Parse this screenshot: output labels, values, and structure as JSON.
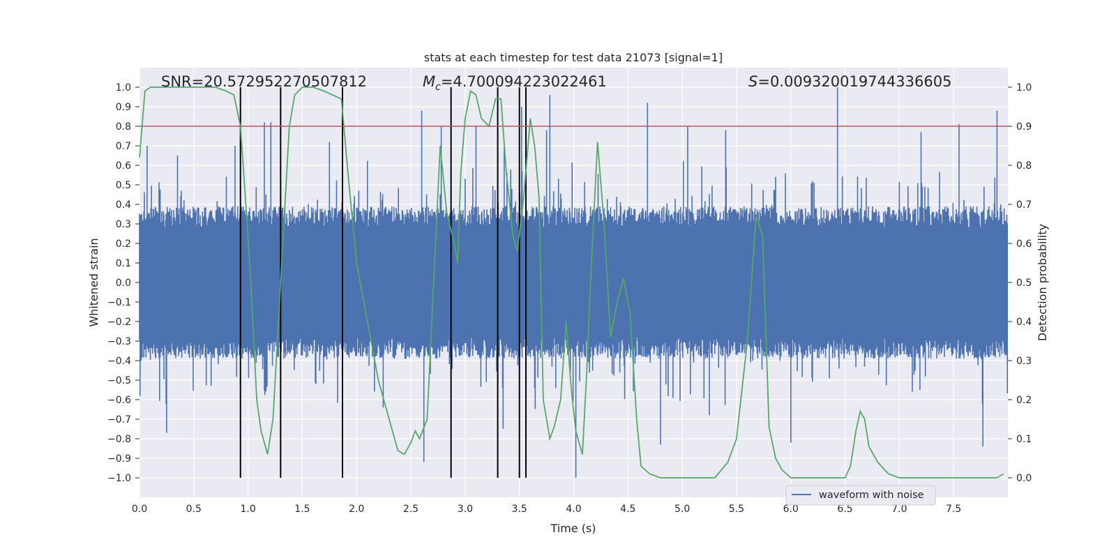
{
  "chart_data": {
    "type": "line",
    "title": "stats at each timestep for test data 21073 [signal=1]",
    "xlabel": "Time (s)",
    "ylabel": "Whitened strain",
    "y2label": "Detection probability",
    "xlim": [
      0.0,
      8.0
    ],
    "ylim": [
      -1.1,
      1.1
    ],
    "y2lim": [
      -0.05,
      1.05
    ],
    "x_ticks": [
      "0.0",
      "0.5",
      "1.0",
      "1.5",
      "2.0",
      "2.5",
      "3.0",
      "3.5",
      "4.0",
      "4.5",
      "5.0",
      "5.5",
      "6.0",
      "6.5",
      "7.0",
      "7.5"
    ],
    "y_ticks": [
      "1.0",
      "0.9",
      "0.8",
      "0.7",
      "0.6",
      "0.5",
      "0.4",
      "0.3",
      "0.2",
      "0.1",
      "0.0",
      "−0.1",
      "−0.2",
      "−0.3",
      "−0.4",
      "−0.5",
      "−0.6",
      "−0.7",
      "−0.8",
      "−0.9",
      "−1.0"
    ],
    "y2_ticks": [
      "1.0",
      "0.9",
      "0.8",
      "0.7",
      "0.6",
      "0.5",
      "0.4",
      "0.3",
      "0.2",
      "0.1",
      "0.0"
    ],
    "grid": true,
    "legend_position": "lower-right",
    "annotations": {
      "snr": "SNR=20.572952270507812",
      "mc": "=4.700094223022461",
      "s": "=0.009320019744336605"
    },
    "series": [
      {
        "name": "waveform with noise",
        "color": "#4c72b0",
        "axis": "left",
        "description": "dense noisy whitened strain, roughly within ±0.4 with spikes up to ~1.0"
      },
      {
        "axis": "right",
        "color": "#55a868",
        "x": [
          0.0,
          0.05,
          0.1,
          0.2,
          0.3,
          0.4,
          0.5,
          0.6,
          0.7,
          0.8,
          0.87,
          0.93,
          0.98,
          1.03,
          1.08,
          1.12,
          1.18,
          1.23,
          1.28,
          1.33,
          1.38,
          1.43,
          1.5,
          1.6,
          1.7,
          1.78,
          1.86,
          1.93,
          2.0,
          2.1,
          2.2,
          2.3,
          2.38,
          2.44,
          2.5,
          2.54,
          2.58,
          2.65,
          2.71,
          2.77,
          2.83,
          2.9,
          2.93,
          2.96,
          3.0,
          3.05,
          3.1,
          3.15,
          3.22,
          3.28,
          3.33,
          3.38,
          3.44,
          3.48,
          3.54,
          3.6,
          3.64,
          3.68,
          3.72,
          3.78,
          3.82,
          3.88,
          3.93,
          3.98,
          4.02,
          4.08,
          4.12,
          4.16,
          4.22,
          4.28,
          4.34,
          4.4,
          4.46,
          4.52,
          4.58,
          4.62,
          4.7,
          4.8,
          4.9,
          5.0,
          5.1,
          5.2,
          5.3,
          5.36,
          5.42,
          5.5,
          5.6,
          5.68,
          5.74,
          5.8,
          5.86,
          5.92,
          6.0,
          6.1,
          6.2,
          6.3,
          6.4,
          6.5,
          6.55,
          6.6,
          6.64,
          6.68,
          6.72,
          6.8,
          6.9,
          7.0,
          7.2,
          7.4,
          7.6,
          7.7,
          7.8,
          7.9,
          7.96
        ],
        "y": [
          0.82,
          0.99,
          1.0,
          1.0,
          1.0,
          1.0,
          1.0,
          1.0,
          1.0,
          0.99,
          0.98,
          0.9,
          0.7,
          0.48,
          0.2,
          0.12,
          0.06,
          0.15,
          0.4,
          0.65,
          0.9,
          0.98,
          1.0,
          1.0,
          0.99,
          0.98,
          0.97,
          0.75,
          0.55,
          0.4,
          0.25,
          0.15,
          0.07,
          0.06,
          0.09,
          0.12,
          0.1,
          0.15,
          0.5,
          0.85,
          0.68,
          0.6,
          0.55,
          0.78,
          0.92,
          0.99,
          0.98,
          0.92,
          0.9,
          0.97,
          0.97,
          0.78,
          0.62,
          0.58,
          0.72,
          0.92,
          0.85,
          0.72,
          0.2,
          0.1,
          0.13,
          0.2,
          0.4,
          0.22,
          0.12,
          0.06,
          0.27,
          0.53,
          0.86,
          0.65,
          0.36,
          0.45,
          0.51,
          0.42,
          0.15,
          0.03,
          0.01,
          0.0,
          0.0,
          0.0,
          0.0,
          0.0,
          0.0,
          0.02,
          0.04,
          0.1,
          0.35,
          0.67,
          0.62,
          0.13,
          0.05,
          0.02,
          0.0,
          0.0,
          0.0,
          0.0,
          0.0,
          0.0,
          0.03,
          0.12,
          0.17,
          0.15,
          0.08,
          0.04,
          0.01,
          0.0,
          0.0,
          0.0,
          0.0,
          0.0,
          0.0,
          0.0,
          0.01
        ]
      },
      {
        "name": "threshold",
        "axis": "right",
        "color": "#c44e52",
        "y": 0.9
      }
    ],
    "vertical_markers_x": [
      0.93,
      1.3,
      1.87,
      2.87,
      3.3,
      3.5,
      3.56
    ]
  }
}
